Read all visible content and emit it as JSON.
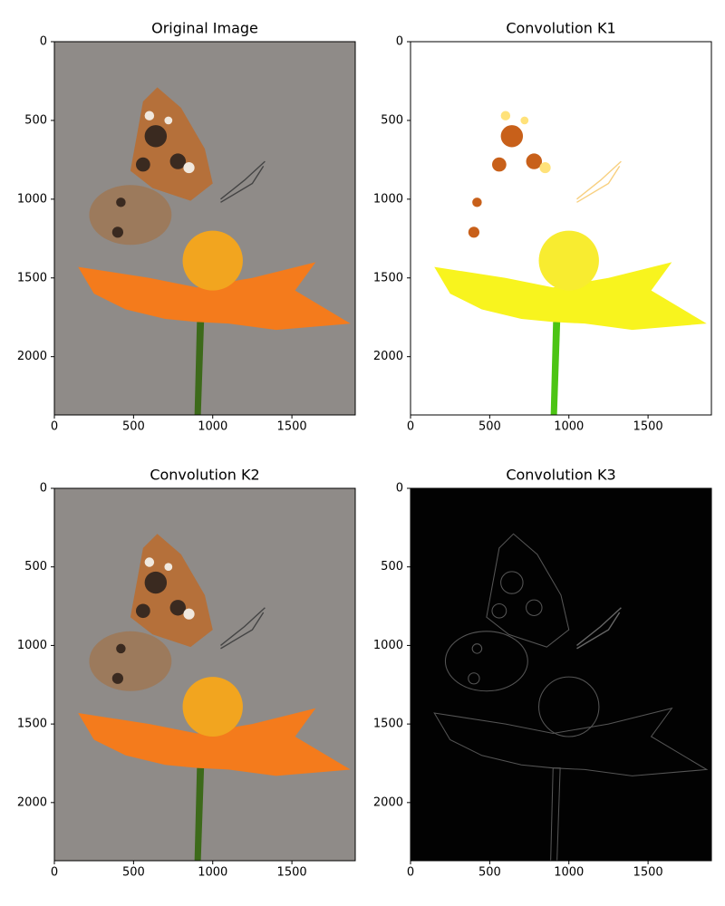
{
  "chart_data": [
    {
      "type": "image",
      "title": "Original Image",
      "xlim": [
        0,
        1900
      ],
      "ylim": [
        2370,
        0
      ],
      "xticks": [
        0,
        500,
        1000,
        1500
      ],
      "yticks": [
        0,
        500,
        1000,
        1500,
        2000
      ]
    },
    {
      "type": "image",
      "title": "Convolution K1",
      "xlim": [
        0,
        1900
      ],
      "ylim": [
        2370,
        0
      ],
      "xticks": [
        0,
        500,
        1000,
        1500
      ],
      "yticks": [
        0,
        500,
        1000,
        1500,
        2000
      ]
    },
    {
      "type": "image",
      "title": "Convolution K2",
      "xlim": [
        0,
        1900
      ],
      "ylim": [
        2370,
        0
      ],
      "xticks": [
        0,
        500,
        1000,
        1500
      ],
      "yticks": [
        0,
        500,
        1000,
        1500,
        2000
      ]
    },
    {
      "type": "image",
      "title": "Convolution K3",
      "xlim": [
        0,
        1900
      ],
      "ylim": [
        2370,
        0
      ],
      "xticks": [
        0,
        500,
        1000,
        1500
      ],
      "yticks": [
        0,
        500,
        1000,
        1500,
        2000
      ]
    }
  ]
}
